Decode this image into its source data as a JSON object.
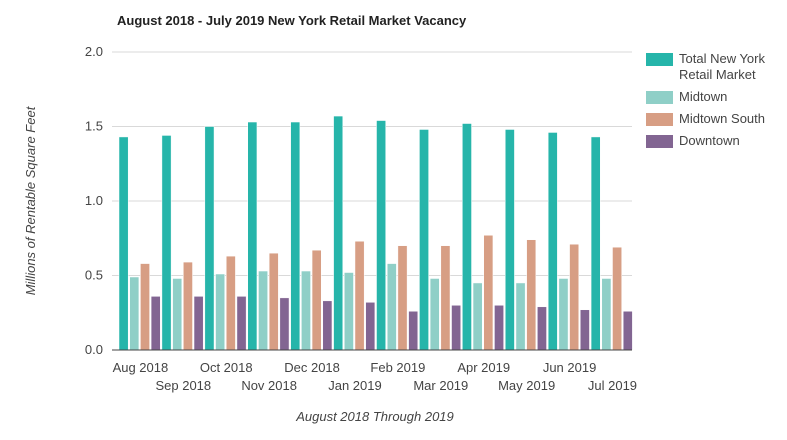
{
  "chart_data": {
    "type": "bar",
    "title": "August 2018 - July 2019 New York Retail Market Vacancy",
    "xlabel": "August 2018 Through 2019",
    "ylabel": "Millions of Rentable Square Feet",
    "ylim": [
      0,
      2.0
    ],
    "yticks": [
      "0.0",
      "0.5",
      "1.0",
      "1.5",
      "2.0"
    ],
    "grid": true,
    "legend_position": "right",
    "categories": [
      "Aug 2018",
      "Sep 2018",
      "Oct 2018",
      "Nov 2018",
      "Dec 2018",
      "Jan 2019",
      "Feb 2019",
      "Mar 2019",
      "Apr 2019",
      "May 2019",
      "Jun 2019",
      "Jul 2019"
    ],
    "series": [
      {
        "name": "Total New York Retail Market",
        "color": "#26b5aa",
        "values": [
          1.43,
          1.44,
          1.5,
          1.53,
          1.53,
          1.57,
          1.54,
          1.48,
          1.52,
          1.48,
          1.46,
          1.43
        ]
      },
      {
        "name": "Midtown",
        "color": "#8fcfc7",
        "values": [
          0.49,
          0.48,
          0.51,
          0.53,
          0.53,
          0.52,
          0.58,
          0.48,
          0.45,
          0.45,
          0.48,
          0.48
        ]
      },
      {
        "name": "Midtown South",
        "color": "#d79e84",
        "values": [
          0.58,
          0.59,
          0.63,
          0.65,
          0.67,
          0.73,
          0.7,
          0.7,
          0.77,
          0.74,
          0.71,
          0.69
        ]
      },
      {
        "name": "Downtown",
        "color": "#826592",
        "values": [
          0.36,
          0.36,
          0.36,
          0.35,
          0.33,
          0.32,
          0.26,
          0.3,
          0.3,
          0.29,
          0.27,
          0.26
        ]
      }
    ]
  }
}
